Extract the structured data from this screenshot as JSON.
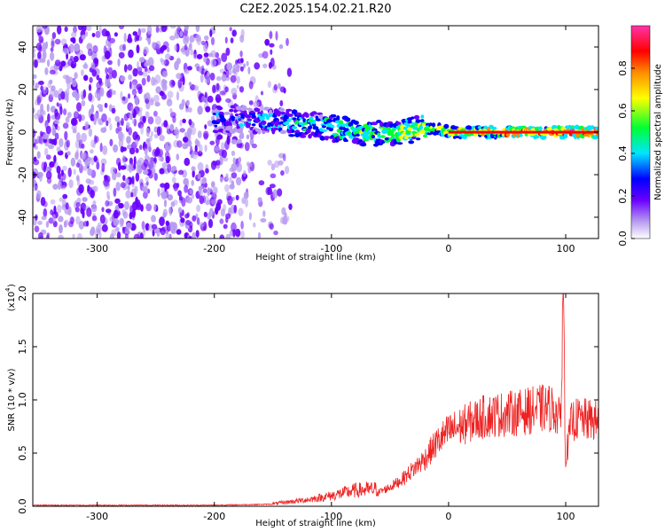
{
  "title": "C2E2.2025.154.02.21.R20",
  "chart_data": [
    {
      "type": "heatmap",
      "title": "C2E2.2025.154.02.21.R20",
      "xlabel": "Height of straight line (km)",
      "ylabel": "Frequency (Hz)",
      "xlim": [
        -355,
        128
      ],
      "ylim": [
        -50,
        50
      ],
      "xticks": [
        -300,
        -200,
        -100,
        0,
        100
      ],
      "yticks": [
        -40,
        -20,
        0,
        20,
        40
      ],
      "xtick_labels": [
        "-300",
        "-200",
        "-100",
        "0",
        "100"
      ],
      "ytick_labels": [
        "-40",
        "-20",
        "0",
        "20",
        "40"
      ],
      "colorbar": {
        "label": "Normalized spectral amplitude",
        "range": [
          0,
          1
        ],
        "ticks": [
          0.0,
          0.2,
          0.4,
          0.6,
          0.8
        ],
        "tick_labels": [
          "0.0",
          "0.2",
          "0.4",
          "0.6",
          "0.8"
        ],
        "colors": [
          "#ffffff",
          "#b79bf0",
          "#6a00ff",
          "#0000ff",
          "#00e5ff",
          "#00ff33",
          "#ffff00",
          "#ff8c00",
          "#ff0000",
          "#ff33aa"
        ]
      },
      "ridge": {
        "x": [
          -200,
          -170,
          -150,
          -130,
          -110,
          -90,
          -70,
          -50,
          -30,
          -10,
          0,
          50,
          100,
          128
        ],
        "y": [
          6,
          6,
          5,
          4,
          3,
          1,
          0,
          -1,
          1,
          2,
          0,
          0,
          0,
          0
        ]
      },
      "noise_region": {
        "x": [
          -355,
          -150
        ],
        "level": 0.3
      },
      "grid": false
    },
    {
      "type": "line",
      "xlabel": "Height of straight line (km)",
      "ylabel": "SNR (10 * v/v)",
      "scale_label": "(x10",
      "scale_exponent": "4",
      "xlim": [
        -355,
        128
      ],
      "ylim": [
        0,
        2
      ],
      "xticks": [
        -300,
        -200,
        -100,
        0,
        100
      ],
      "yticks": [
        0.0,
        0.5,
        1.0,
        1.5,
        2.0
      ],
      "xtick_labels": [
        "-300",
        "-200",
        "-100",
        "0",
        "100"
      ],
      "ytick_labels": [
        "0.0",
        "0.5",
        "1.0",
        "1.5",
        "2.0"
      ],
      "series": [
        {
          "color": "#ee2222",
          "x": [
            -355,
            -300,
            -250,
            -200,
            -150,
            -120,
            -100,
            -80,
            -60,
            -50,
            -40,
            -30,
            -20,
            -10,
            0,
            10,
            20,
            30,
            40,
            50,
            60,
            70,
            80,
            90,
            95,
            98,
            100,
            105,
            110,
            128
          ],
          "y": [
            0.01,
            0.01,
            0.01,
            0.01,
            0.02,
            0.05,
            0.08,
            0.12,
            0.13,
            0.18,
            0.25,
            0.35,
            0.45,
            0.6,
            0.7,
            0.75,
            0.8,
            0.84,
            0.86,
            0.87,
            0.88,
            0.9,
            0.92,
            0.92,
            0.8,
            1.5,
            0.45,
            0.8,
            0.82,
            0.8
          ]
        }
      ],
      "grid": false
    }
  ]
}
